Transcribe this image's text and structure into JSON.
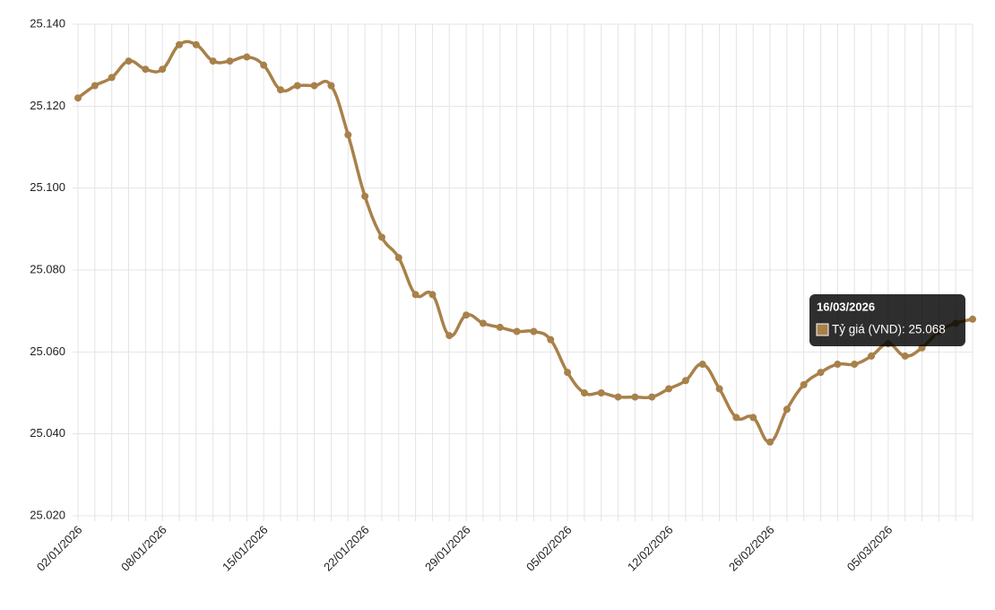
{
  "chart_data": {
    "type": "line",
    "categories": [
      "02/01/2026",
      null,
      null,
      null,
      null,
      "08/01/2026",
      null,
      null,
      null,
      null,
      null,
      "15/01/2026",
      null,
      null,
      null,
      null,
      null,
      "22/01/2026",
      null,
      null,
      null,
      null,
      null,
      "29/01/2026",
      null,
      null,
      null,
      null,
      null,
      "05/02/2026",
      null,
      null,
      null,
      null,
      null,
      "12/02/2026",
      null,
      null,
      null,
      null,
      null,
      "26/02/2026",
      null,
      null,
      null,
      null,
      null,
      null,
      "05/03/2026",
      null,
      null,
      null,
      null,
      "16/03/2026"
    ],
    "series": [
      {
        "name": "Tỷ giá (VND)",
        "color": "#a8814a",
        "values": [
          25.122,
          25.125,
          25.127,
          25.131,
          25.129,
          25.129,
          25.135,
          25.135,
          25.131,
          25.131,
          25.132,
          25.13,
          25.124,
          25.125,
          25.125,
          25.125,
          25.113,
          25.098,
          25.088,
          25.083,
          25.074,
          25.074,
          25.064,
          25.069,
          25.067,
          25.066,
          25.065,
          25.065,
          25.063,
          25.055,
          25.05,
          25.05,
          25.049,
          25.049,
          25.049,
          25.051,
          25.053,
          25.057,
          25.051,
          25.044,
          25.044,
          25.038,
          25.046,
          25.052,
          25.055,
          25.057,
          25.057,
          25.059,
          25.062,
          25.059,
          25.061,
          25.065,
          25.067,
          25.068
        ]
      }
    ],
    "ylim": [
      25.02,
      25.14
    ],
    "yticks": [
      {
        "value": 25.02,
        "label": "25.020"
      },
      {
        "value": 25.04,
        "label": "25.040"
      },
      {
        "value": 25.06,
        "label": "25.060"
      },
      {
        "value": 25.08,
        "label": "25.080"
      },
      {
        "value": 25.1,
        "label": "25.100"
      },
      {
        "value": 25.12,
        "label": "25.120"
      },
      {
        "value": 25.14,
        "label": "25.140"
      }
    ],
    "grid": true,
    "tooltip": {
      "label": "Tỷ giá (VND): 25.068"
    }
  }
}
